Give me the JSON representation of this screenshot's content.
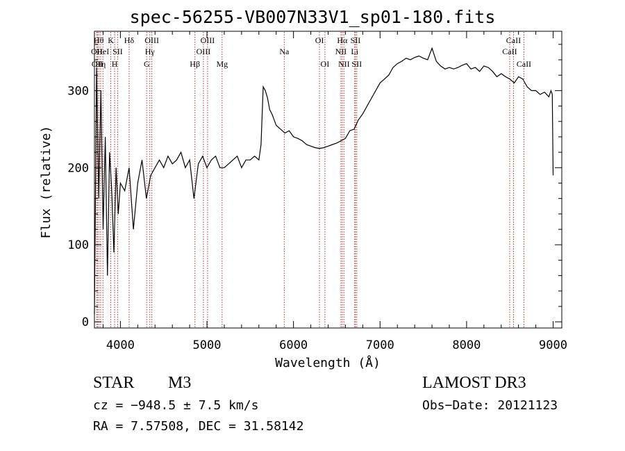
{
  "chart_data": {
    "type": "line",
    "title": "spec-56255-VB007N33V1_sp01-180.fits",
    "xlabel": "Wavelength (Å)",
    "ylabel": "Flux (relative)",
    "xlim": [
      3700,
      9100
    ],
    "ylim": [
      -8,
      377
    ],
    "xticks": [
      4000,
      5000,
      6000,
      7000,
      8000,
      9000
    ],
    "xtick_labels": [
      "4000",
      "5000",
      "6000",
      "7000",
      "8000",
      "9000"
    ],
    "yticks": [
      0,
      100,
      200,
      300
    ],
    "ytick_labels": [
      "0",
      "100",
      "200",
      "300"
    ],
    "line_color": "#000000",
    "marker_color": "#b03030",
    "series": [
      {
        "name": "flux",
        "x": [
          3700,
          3725,
          3750,
          3775,
          3800,
          3825,
          3850,
          3875,
          3900,
          3925,
          3950,
          3975,
          4000,
          4050,
          4100,
          4150,
          4200,
          4250,
          4300,
          4350,
          4400,
          4450,
          4500,
          4550,
          4600,
          4650,
          4700,
          4750,
          4800,
          4850,
          4900,
          4950,
          5000,
          5050,
          5100,
          5150,
          5200,
          5250,
          5300,
          5350,
          5400,
          5450,
          5500,
          5550,
          5600,
          5625,
          5650,
          5675,
          5700,
          5725,
          5750,
          5800,
          5850,
          5900,
          5950,
          6000,
          6050,
          6100,
          6150,
          6200,
          6250,
          6300,
          6350,
          6400,
          6450,
          6500,
          6550,
          6600,
          6650,
          6700,
          6750,
          6800,
          6850,
          6900,
          6950,
          7000,
          7050,
          7100,
          7150,
          7200,
          7250,
          7300,
          7350,
          7400,
          7450,
          7500,
          7550,
          7600,
          7650,
          7700,
          7750,
          7800,
          7850,
          7900,
          7950,
          8000,
          8050,
          8100,
          8150,
          8200,
          8250,
          8300,
          8350,
          8400,
          8450,
          8500,
          8550,
          8600,
          8650,
          8700,
          8750,
          8800,
          8850,
          8900,
          8950,
          8975,
          8990,
          9000
        ],
        "y": [
          10,
          330,
          160,
          300,
          120,
          240,
          60,
          220,
          170,
          90,
          200,
          140,
          180,
          170,
          200,
          120,
          180,
          210,
          160,
          190,
          200,
          210,
          200,
          215,
          205,
          210,
          220,
          200,
          210,
          160,
          205,
          215,
          200,
          210,
          215,
          200,
          200,
          205,
          210,
          215,
          200,
          210,
          210,
          215,
          210,
          230,
          305,
          300,
          290,
          275,
          270,
          255,
          250,
          245,
          248,
          240,
          238,
          235,
          230,
          228,
          226,
          225,
          226,
          228,
          230,
          232,
          235,
          238,
          248,
          250,
          262,
          270,
          280,
          290,
          300,
          310,
          315,
          320,
          330,
          335,
          338,
          342,
          340,
          343,
          345,
          342,
          340,
          355,
          338,
          332,
          328,
          330,
          328,
          330,
          333,
          335,
          328,
          330,
          325,
          332,
          330,
          325,
          318,
          322,
          318,
          315,
          310,
          318,
          315,
          305,
          300,
          300,
          295,
          298,
          292,
          300,
          295,
          190
        ]
      }
    ],
    "line_markers": [
      {
        "wave": 3727,
        "label": "OII",
        "row": 2
      },
      {
        "wave": 3734,
        "label": "OII",
        "row": 3
      },
      {
        "wave": 3750,
        "label": "Hθ",
        "row": 1
      },
      {
        "wave": 3771,
        "label": "Hη",
        "row": 3
      },
      {
        "wave": 3798,
        "label": "HeI",
        "row": 2
      },
      {
        "wave": 3889,
        "label": "K",
        "row": 1
      },
      {
        "wave": 3933,
        "label": "H",
        "row": 3
      },
      {
        "wave": 3968,
        "label": "SII",
        "row": 2
      },
      {
        "wave": 4101,
        "label": "Hδ",
        "row": 1
      },
      {
        "wave": 4304,
        "label": "G",
        "row": 3
      },
      {
        "wave": 4340,
        "label": "Hγ",
        "row": 2
      },
      {
        "wave": 4363,
        "label": "OIII",
        "row": 1
      },
      {
        "wave": 4861,
        "label": "Hβ",
        "row": 3
      },
      {
        "wave": 4959,
        "label": "OIII",
        "row": 2
      },
      {
        "wave": 5007,
        "label": "OIII",
        "row": 1
      },
      {
        "wave": 5175,
        "label": "Mg",
        "row": 3
      },
      {
        "wave": 5893,
        "label": "Na",
        "row": 2
      },
      {
        "wave": 6300,
        "label": "OI",
        "row": 1
      },
      {
        "wave": 6363,
        "label": "OI",
        "row": 3
      },
      {
        "wave": 6548,
        "label": "NII",
        "row": 2
      },
      {
        "wave": 6563,
        "label": "Hα",
        "row": 1
      },
      {
        "wave": 6583,
        "label": "NII",
        "row": 3
      },
      {
        "wave": 6707,
        "label": "Li",
        "row": 2
      },
      {
        "wave": 6716,
        "label": "SII",
        "row": 1
      },
      {
        "wave": 6731,
        "label": "SII",
        "row": 3
      },
      {
        "wave": 8498,
        "label": "CaII",
        "row": 2
      },
      {
        "wave": 8542,
        "label": "CaII",
        "row": 1
      },
      {
        "wave": 8662,
        "label": "CaII",
        "row": 3
      }
    ]
  },
  "info": {
    "obj_class": "STAR",
    "obj_subclass": "M3",
    "survey": "LAMOST DR3",
    "cz": "cz = −948.5 ± 7.5 km/s",
    "obs_date": "Obs−Date: 20121123",
    "radec": "RA =   7.57508, DEC =  31.58142"
  }
}
